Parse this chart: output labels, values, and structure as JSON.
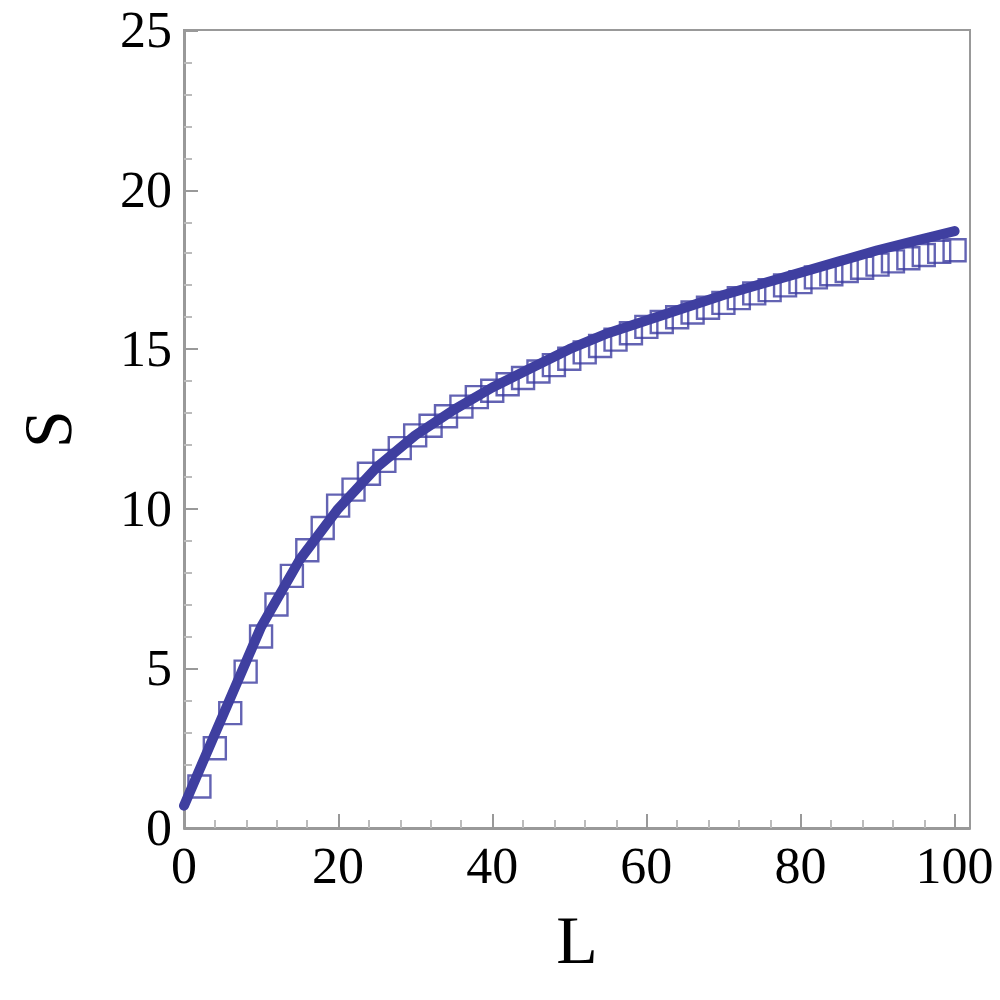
{
  "chart_data": {
    "type": "scatter",
    "xlabel": "L",
    "ylabel": "S",
    "xlim": [
      0,
      102
    ],
    "xticks": [
      0,
      20,
      40,
      60,
      80,
      100
    ],
    "ylim": [
      0,
      25
    ],
    "yticks": [
      0,
      5,
      10,
      15,
      20,
      25
    ],
    "grid": false,
    "series": [
      {
        "type": "scatter",
        "marker": "square",
        "color": "#3c3ca0",
        "x": [
          2,
          4,
          6,
          8,
          10,
          12,
          14,
          16,
          18,
          20,
          22,
          24,
          26,
          28,
          30,
          32,
          34,
          36,
          38,
          40,
          42,
          44,
          46,
          48,
          50,
          52,
          54,
          56,
          58,
          60,
          62,
          64,
          66,
          68,
          70,
          72,
          74,
          76,
          78,
          80,
          82,
          84,
          86,
          88,
          90,
          92,
          94,
          96,
          98,
          100
        ],
        "values": [
          1.3,
          2.5,
          3.6,
          4.9,
          6.0,
          7.0,
          7.9,
          8.7,
          9.4,
          10.1,
          10.6,
          11.1,
          11.5,
          11.9,
          12.3,
          12.6,
          12.9,
          13.2,
          13.5,
          13.7,
          13.9,
          14.1,
          14.3,
          14.5,
          14.7,
          14.9,
          15.1,
          15.3,
          15.5,
          15.7,
          15.85,
          16.0,
          16.15,
          16.3,
          16.45,
          16.6,
          16.75,
          16.85,
          17.0,
          17.1,
          17.25,
          17.35,
          17.45,
          17.55,
          17.65,
          17.75,
          17.85,
          17.95,
          18.05,
          18.1
        ]
      },
      {
        "type": "line",
        "marker": "none",
        "line_style": "solid",
        "color": "#3f3fa0",
        "x": [
          0,
          5,
          10,
          15,
          20,
          25,
          30,
          35,
          40,
          45,
          50,
          55,
          60,
          65,
          70,
          75,
          80,
          85,
          90,
          95,
          100
        ],
        "values": [
          0.7,
          3.5,
          6.3,
          8.4,
          10.0,
          11.3,
          12.3,
          13.1,
          13.8,
          14.4,
          15.0,
          15.5,
          15.9,
          16.3,
          16.7,
          17.05,
          17.4,
          17.75,
          18.1,
          18.4,
          18.7
        ]
      }
    ]
  }
}
